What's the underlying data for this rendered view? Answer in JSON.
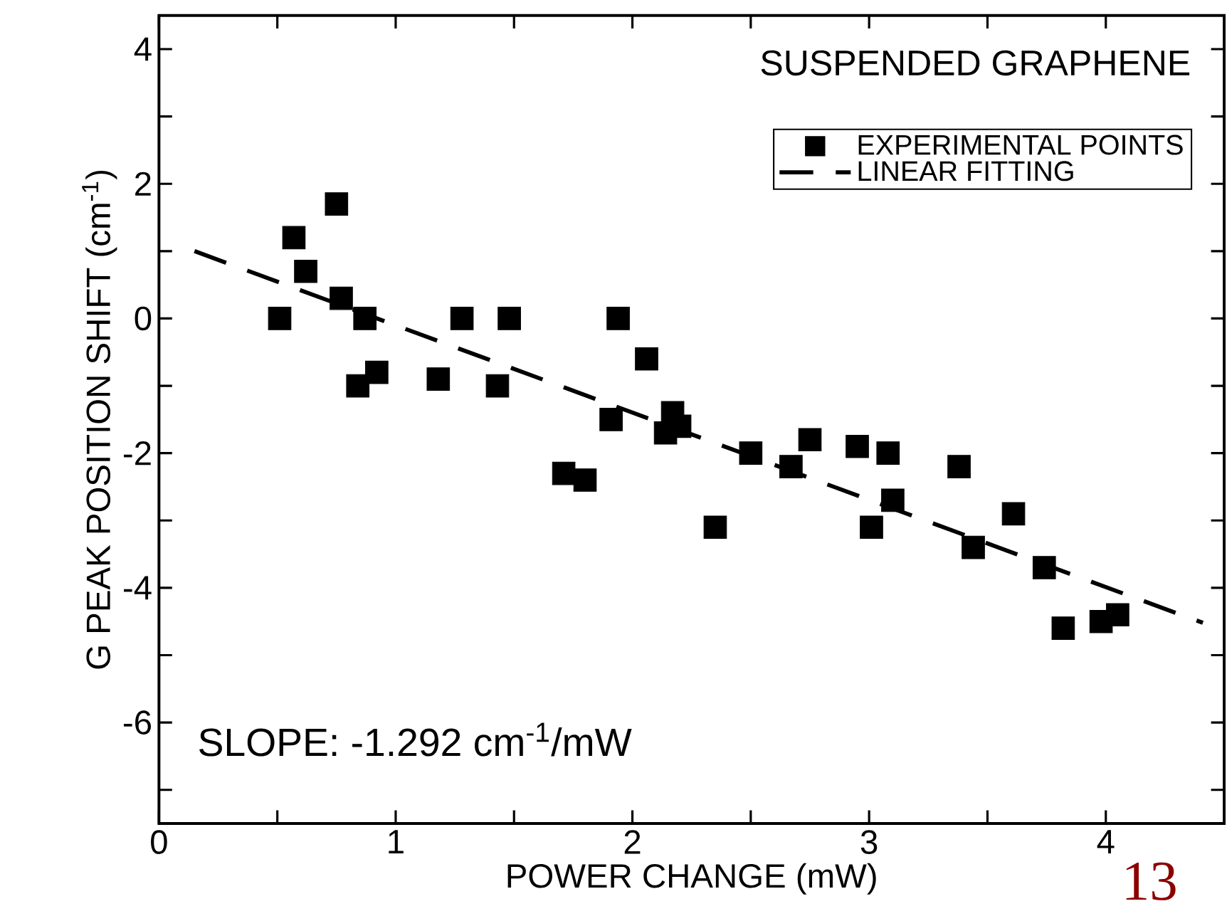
{
  "chart_data": {
    "type": "scatter",
    "title": "SUSPENDED GRAPHENE",
    "xlabel": "POWER CHANGE (mW)",
    "ylabel": "G PEAK POSITION SHIFT (cm$^{-1}$)",
    "xlim": [
      0,
      4.5
    ],
    "ylim": [
      -7.5,
      4.5
    ],
    "xticks": [
      0,
      {
        "value": 0.5,
        "label": null
      },
      1,
      {
        "value": 1.5,
        "label": null
      },
      2,
      {
        "value": 2.5,
        "label": null
      },
      3,
      {
        "value": 3.5,
        "label": null
      },
      4
    ],
    "yticks": [
      {
        "value": -7,
        "label": null
      },
      -6,
      {
        "value": -5,
        "label": null
      },
      -4,
      {
        "value": -3,
        "label": null
      },
      -2,
      {
        "value": -1,
        "label": null
      },
      0,
      {
        "value": 1,
        "label": null
      },
      2,
      {
        "value": 3,
        "label": null
      },
      4
    ],
    "legend": "top right",
    "annotations": [
      "SLOPE: -1.292 cm$^{-1}$/mW",
      "13"
    ],
    "series": [
      {
        "name": "EXPERIMENTAL POINTS",
        "marker": "square",
        "color": "#000000",
        "x": [
          0.51,
          0.57,
          0.62,
          0.75,
          0.77,
          0.87,
          0.84,
          0.92,
          1.18,
          1.28,
          1.43,
          1.48,
          1.94,
          2.06,
          1.91,
          2.17,
          2.2,
          2.14,
          1.71,
          1.8,
          2.35,
          2.5,
          2.67,
          2.75,
          2.95,
          3.08,
          3.01,
          3.1,
          3.38,
          3.44,
          3.61,
          3.74,
          3.82,
          3.98,
          4.05
        ],
        "values": [
          0,
          1.2,
          0.7,
          1.7,
          0.3,
          0,
          -1.0,
          -0.8,
          -0.9,
          0,
          -1.0,
          0,
          0,
          -0.6,
          -1.5,
          -1.4,
          -1.6,
          -1.7,
          -2.3,
          -2.4,
          -3.1,
          -2.0,
          -2.2,
          -1.8,
          -1.9,
          -2.0,
          -3.1,
          -2.7,
          -2.2,
          -3.4,
          -2.9,
          -3.7,
          -4.6,
          -4.5,
          -4.4
        ]
      },
      {
        "name": "LINEAR FITTING",
        "type": "line",
        "line_style": "dashed",
        "color": "#000000",
        "x": [
          0.15,
          4.41
        ],
        "values": [
          1.0,
          -4.52
        ]
      }
    ]
  }
}
